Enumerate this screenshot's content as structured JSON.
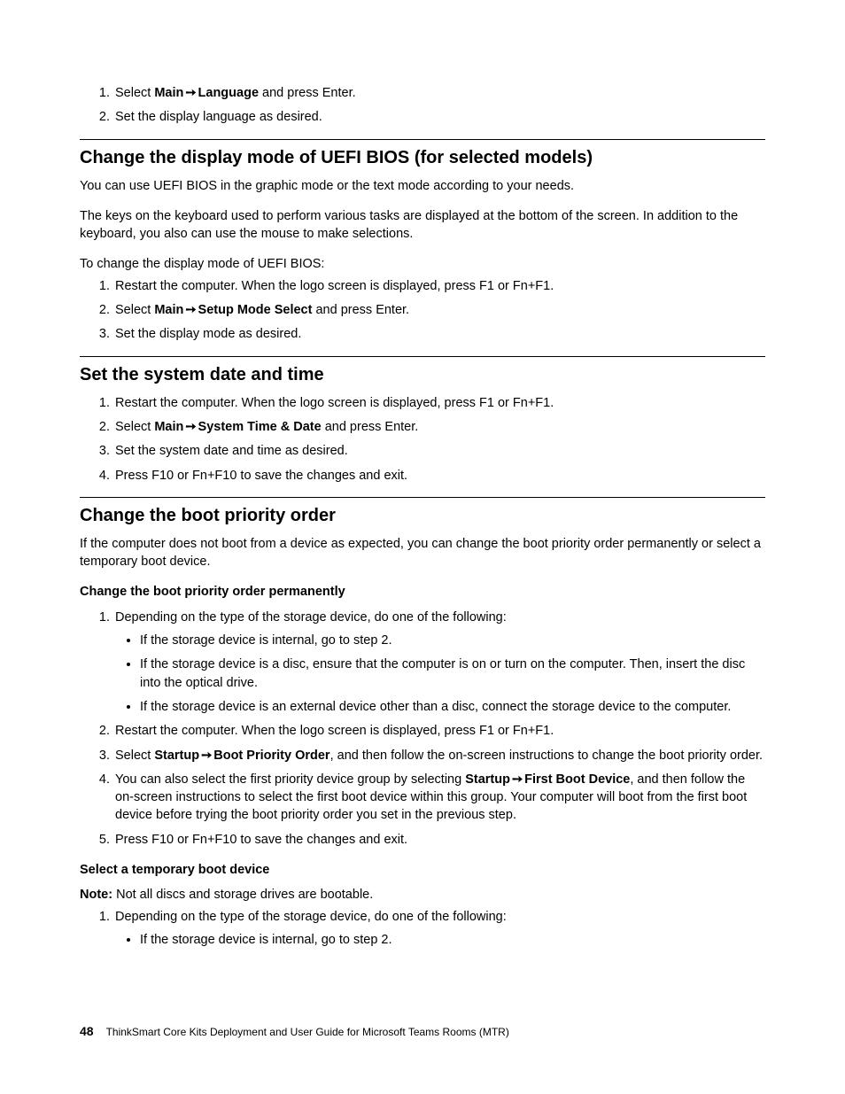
{
  "intro_list": {
    "item1_pre": "Select ",
    "item1_b1": "Main",
    "item1_arrow": " ➙ ",
    "item1_b2": "Language",
    "item1_post": " and press Enter.",
    "item2": "Set the display language as desired."
  },
  "sec1": {
    "heading": "Change the display mode of UEFI BIOS (for selected models)",
    "p1": "You can use UEFI BIOS in the graphic mode or the text mode according to your needs.",
    "p2": "The keys on the keyboard used to perform various tasks are displayed at the bottom of the screen. In addition to the keyboard, you also can use the mouse to make selections.",
    "p3": "To change the display mode of UEFI BIOS:",
    "li1": "Restart the computer. When the logo screen is displayed, press F1 or Fn+F1.",
    "li2_pre": "Select ",
    "li2_b1": "Main",
    "li2_arrow": " ➙ ",
    "li2_b2": "Setup Mode Select",
    "li2_post": " and press Enter.",
    "li3": "Set the display mode as desired."
  },
  "sec2": {
    "heading": "Set the system date and time",
    "li1": "Restart the computer. When the logo screen is displayed, press F1 or Fn+F1.",
    "li2_pre": "Select ",
    "li2_b1": "Main",
    "li2_arrow": " ➙ ",
    "li2_b2": "System Time & Date",
    "li2_post": " and press Enter.",
    "li3": "Set the system date and time as desired.",
    "li4": "Press F10 or Fn+F10 to save the changes and exit."
  },
  "sec3": {
    "heading": "Change the boot priority order",
    "p1": "If the computer does not boot from a device as expected, you can change the boot priority order permanently or select a temporary boot device.",
    "sub1": "Change the boot priority order permanently",
    "li1": "Depending on the type of the storage device, do one of the following:",
    "li1_b1": "If the storage device is internal, go to step 2.",
    "li1_b2": "If the storage device is a disc, ensure that the computer is on or turn on the computer. Then, insert the disc into the optical drive.",
    "li1_b3": "If the storage device is an external device other than a disc, connect the storage device to the computer.",
    "li2": "Restart the computer. When the logo screen is displayed, press F1 or Fn+F1.",
    "li3_pre": "Select ",
    "li3_b1": "Startup",
    "li3_arrow": " ➙ ",
    "li3_b2": "Boot Priority Order",
    "li3_post": ", and then follow the on-screen instructions to change the boot priority order.",
    "li4_pre": "You can also select the first priority device group by selecting ",
    "li4_b1": "Startup",
    "li4_arrow": " ➙ ",
    "li4_b2": "First Boot Device",
    "li4_post": ", and then follow the on-screen instructions to select the first boot device within this group. Your computer will boot from the first boot device before trying the boot priority order you set in the previous step.",
    "li5": "Press F10 or Fn+F10 to save the changes and exit.",
    "sub2": "Select a temporary boot device",
    "note_label": "Note:",
    "note_text": "  Not all discs and storage drives are bootable.",
    "s2_li1": "Depending on the type of the storage device, do one of the following:",
    "s2_li1_b1": "If the storage device is internal, go to step 2."
  },
  "footer": {
    "page": "48",
    "title": "ThinkSmart Core Kits Deployment and User Guide for Microsoft Teams Rooms (MTR)"
  }
}
